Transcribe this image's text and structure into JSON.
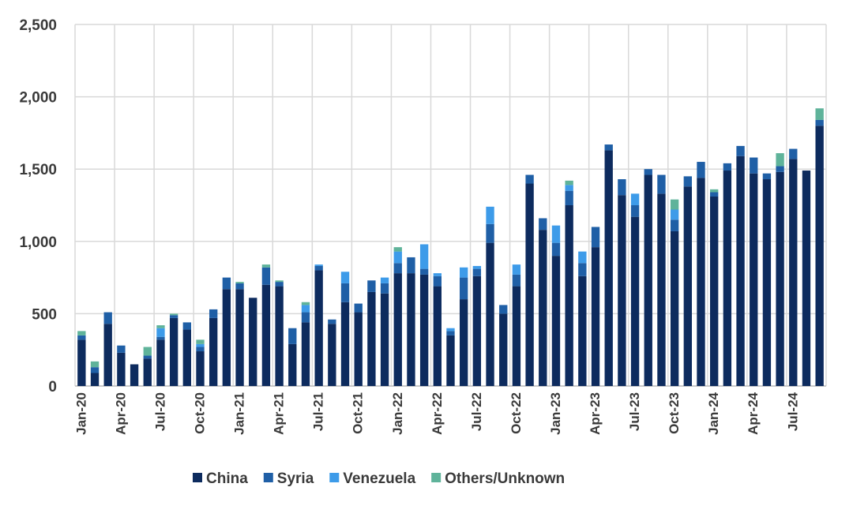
{
  "chart_data": {
    "type": "bar",
    "stacked": true,
    "ylim": [
      0,
      2500
    ],
    "yticks": [
      "0",
      "500",
      "1,000",
      "1,500",
      "2,000",
      "2,500"
    ],
    "ytick_values": [
      0,
      500,
      1000,
      1500,
      2000,
      2500
    ],
    "grid": true,
    "legend_position": "bottom",
    "x": [
      "Jan-20",
      "Feb-20",
      "Mar-20",
      "Apr-20",
      "May-20",
      "Jun-20",
      "Jul-20",
      "Aug-20",
      "Sep-20",
      "Oct-20",
      "Nov-20",
      "Dec-20",
      "Jan-21",
      "Feb-21",
      "Mar-21",
      "Apr-21",
      "May-21",
      "Jun-21",
      "Jul-21",
      "Aug-21",
      "Sep-21",
      "Oct-21",
      "Nov-21",
      "Dec-21",
      "Jan-22",
      "Feb-22",
      "Mar-22",
      "Apr-22",
      "May-22",
      "Jun-22",
      "Jul-22",
      "Aug-22",
      "Sep-22",
      "Oct-22",
      "Nov-22",
      "Dec-22",
      "Jan-23",
      "Feb-23",
      "Mar-23",
      "Apr-23",
      "May-23",
      "Jun-23",
      "Jul-23",
      "Aug-23",
      "Sep-23",
      "Oct-23",
      "Nov-23",
      "Dec-23",
      "Jan-24",
      "Feb-24",
      "Mar-24",
      "Apr-24",
      "May-24",
      "Jun-24",
      "Jul-24",
      "Aug-24",
      "Sep-24"
    ],
    "xtick_labels": [
      "Jan-20",
      "Apr-20",
      "Jul-20",
      "Oct-20",
      "Jan-21",
      "Apr-21",
      "Jul-21",
      "Oct-21",
      "Jan-22",
      "Apr-22",
      "Jul-22",
      "Oct-22",
      "Jan-23",
      "Apr-23",
      "Jul-23",
      "Oct-23",
      "Jan-24",
      "Apr-24",
      "Jul-24"
    ],
    "series": [
      {
        "name": "China",
        "color": "#0d2b5e",
        "values": [
          320,
          90,
          430,
          230,
          150,
          190,
          320,
          470,
          390,
          240,
          470,
          670,
          670,
          610,
          700,
          690,
          290,
          440,
          800,
          430,
          580,
          510,
          650,
          640,
          780,
          780,
          770,
          690,
          350,
          600,
          760,
          990,
          500,
          690,
          1400,
          1080,
          900,
          1250,
          760,
          960,
          1630,
          1320,
          1170,
          1460,
          1330,
          1070,
          1380,
          1440,
          1310,
          1490,
          1590,
          1470,
          1430,
          1480,
          1570,
          1490,
          1800
        ]
      },
      {
        "name": "Syria",
        "color": "#1f5fa6",
        "values": [
          30,
          40,
          80,
          50,
          0,
          20,
          20,
          20,
          50,
          30,
          60,
          80,
          40,
          0,
          120,
          30,
          110,
          70,
          30,
          30,
          130,
          60,
          80,
          70,
          70,
          110,
          40,
          70,
          30,
          150,
          50,
          130,
          60,
          80,
          60,
          80,
          90,
          100,
          90,
          140,
          40,
          110,
          80,
          40,
          130,
          80,
          70,
          110,
          30,
          50,
          70,
          110,
          40,
          40,
          70,
          0,
          40
        ]
      },
      {
        "name": "Venezuela",
        "color": "#3d9be9",
        "values": [
          0,
          0,
          0,
          0,
          0,
          0,
          60,
          0,
          0,
          20,
          0,
          0,
          0,
          0,
          0,
          0,
          0,
          50,
          10,
          0,
          80,
          0,
          0,
          40,
          80,
          0,
          170,
          20,
          20,
          70,
          20,
          120,
          0,
          70,
          0,
          0,
          120,
          40,
          80,
          0,
          0,
          0,
          80,
          0,
          0,
          70,
          0,
          0,
          0,
          0,
          0,
          0,
          0,
          0,
          0,
          0,
          0
        ]
      },
      {
        "name": "Others/Unknown",
        "color": "#5fb39a",
        "values": [
          30,
          40,
          0,
          0,
          0,
          60,
          20,
          10,
          0,
          30,
          0,
          0,
          10,
          0,
          20,
          10,
          0,
          20,
          0,
          0,
          0,
          0,
          0,
          0,
          30,
          0,
          0,
          0,
          0,
          0,
          0,
          0,
          0,
          0,
          0,
          0,
          0,
          30,
          0,
          0,
          0,
          0,
          0,
          0,
          0,
          70,
          0,
          0,
          20,
          0,
          0,
          0,
          0,
          90,
          0,
          0,
          80
        ]
      }
    ]
  }
}
